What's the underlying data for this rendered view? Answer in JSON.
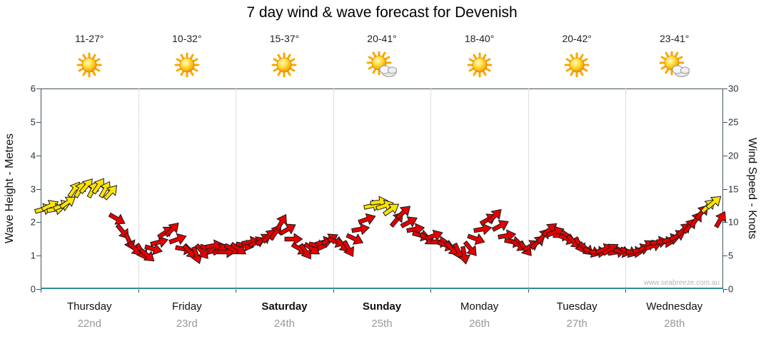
{
  "title": "7 day wind & wave forecast for Devenish",
  "watermark": "www.seabreeze.com.au",
  "left_axis": {
    "label": "Wave Height - Metres",
    "ticks": [
      0,
      1,
      2,
      3,
      4,
      5,
      6
    ]
  },
  "right_axis": {
    "label": "Wind Speed - Knots",
    "ticks": [
      0,
      5,
      10,
      15,
      20,
      25,
      30
    ]
  },
  "days": [
    {
      "name": "Thursday",
      "date": "22nd",
      "temp": "11-27°",
      "icon": "sun",
      "bold": false
    },
    {
      "name": "Friday",
      "date": "23rd",
      "temp": "10-32°",
      "icon": "sun",
      "bold": false
    },
    {
      "name": "Saturday",
      "date": "24th",
      "temp": "15-37°",
      "icon": "sun",
      "bold": true
    },
    {
      "name": "Sunday",
      "date": "25th",
      "temp": "20-41°",
      "icon": "sun-cloud",
      "bold": true
    },
    {
      "name": "Monday",
      "date": "26th",
      "temp": "18-40°",
      "icon": "sun",
      "bold": false
    },
    {
      "name": "Tuesday",
      "date": "27th",
      "temp": "20-42°",
      "icon": "sun",
      "bold": false
    },
    {
      "name": "Wednesday",
      "date": "28th",
      "temp": "23-41°",
      "icon": "sun-cloud",
      "bold": false
    }
  ],
  "colors": {
    "strong_wind": "#ffe400",
    "light_wind": "#e60000",
    "arrow_outline": "#1a1a1a",
    "axis": "#44545c",
    "bottom_axis": "#2e8b9a",
    "grid": "#bdbdbd",
    "date_text": "#999999",
    "watermark": "#b5b5b5"
  },
  "chart_data": {
    "type": "wind-arrows",
    "title": "7 day wind & wave forecast for Devenish",
    "x_categories": [
      "Thursday 22nd",
      "Friday 23rd",
      "Saturday 24th",
      "Sunday 25th",
      "Monday 26th",
      "Tuesday 27th",
      "Wednesday 28th"
    ],
    "samples_per_day": 16,
    "y_left": {
      "label": "Wave Height - Metres",
      "range": [
        0,
        6
      ]
    },
    "y_right": {
      "label": "Wind Speed - Knots",
      "range": [
        0,
        30
      ]
    },
    "yellow_threshold_knots": 12,
    "legend": "arrows give wind speed (knots, right axis) and direction; yellow = stronger wind",
    "arrows_speed_dir": [
      [
        12,
        -15
      ],
      [
        12.5,
        -25
      ],
      [
        12,
        -10
      ],
      [
        12.5,
        -20
      ],
      [
        13,
        -35
      ],
      [
        15,
        -55
      ],
      [
        15,
        -60
      ],
      [
        15.5,
        -50
      ],
      [
        15,
        -62
      ],
      [
        15.5,
        -55
      ],
      [
        15,
        -60
      ],
      [
        14.5,
        -48
      ],
      [
        10.5,
        30
      ],
      [
        8.5,
        50
      ],
      [
        7,
        65
      ],
      [
        6,
        45
      ],
      [
        5.5,
        60
      ],
      [
        5,
        40
      ],
      [
        6,
        15
      ],
      [
        7,
        -15
      ],
      [
        8.5,
        -35
      ],
      [
        9,
        -45
      ],
      [
        7.5,
        -20
      ],
      [
        6,
        10
      ],
      [
        5.5,
        45
      ],
      [
        5,
        70
      ],
      [
        5.5,
        50
      ],
      [
        6,
        20
      ],
      [
        6.5,
        -10
      ],
      [
        6,
        -30
      ],
      [
        5.5,
        0
      ],
      [
        6,
        25
      ],
      [
        6,
        35
      ],
      [
        6.5,
        10
      ],
      [
        7,
        -10
      ],
      [
        7,
        -25
      ],
      [
        7.5,
        -35
      ],
      [
        8,
        -45
      ],
      [
        8.5,
        -55
      ],
      [
        10,
        -60
      ],
      [
        9,
        -30
      ],
      [
        7.5,
        0
      ],
      [
        6,
        30
      ],
      [
        5.5,
        55
      ],
      [
        6,
        35
      ],
      [
        6.5,
        10
      ],
      [
        7,
        -15
      ],
      [
        7.5,
        -30
      ],
      [
        7,
        20
      ],
      [
        6.5,
        45
      ],
      [
        6,
        60
      ],
      [
        7.5,
        25
      ],
      [
        9,
        -10
      ],
      [
        10.5,
        -20
      ],
      [
        12.5,
        -12
      ],
      [
        13,
        -8
      ],
      [
        12.5,
        -18
      ],
      [
        12,
        -35
      ],
      [
        10.5,
        -50
      ],
      [
        11.5,
        -42
      ],
      [
        10,
        -28
      ],
      [
        9,
        -10
      ],
      [
        8,
        15
      ],
      [
        7.5,
        35
      ],
      [
        8,
        -20
      ],
      [
        7,
        0
      ],
      [
        6.5,
        20
      ],
      [
        6,
        45
      ],
      [
        5.5,
        65
      ],
      [
        5,
        80
      ],
      [
        6,
        50
      ],
      [
        7.5,
        20
      ],
      [
        9,
        -10
      ],
      [
        10.5,
        -30
      ],
      [
        11,
        -45
      ],
      [
        9.5,
        -28
      ],
      [
        8,
        -10
      ],
      [
        7,
        10
      ],
      [
        6.5,
        30
      ],
      [
        6,
        50
      ],
      [
        6.5,
        -30
      ],
      [
        7,
        -42
      ],
      [
        8,
        -50
      ],
      [
        9,
        -40
      ],
      [
        8.5,
        -20
      ],
      [
        8,
        0
      ],
      [
        7.5,
        22
      ],
      [
        7,
        42
      ],
      [
        6.5,
        60
      ],
      [
        6,
        42
      ],
      [
        5.5,
        20
      ],
      [
        5.5,
        0
      ],
      [
        6,
        -20
      ],
      [
        6,
        -32
      ],
      [
        5.5,
        -10
      ],
      [
        5.5,
        12
      ],
      [
        5.5,
        20
      ],
      [
        5.5,
        0
      ],
      [
        6,
        -20
      ],
      [
        6.5,
        -32
      ],
      [
        6.5,
        -20
      ],
      [
        7,
        -10
      ],
      [
        7,
        2
      ],
      [
        7.5,
        -15
      ],
      [
        8,
        -30
      ],
      [
        9,
        -42
      ],
      [
        9.5,
        -50
      ],
      [
        10.5,
        -55
      ],
      [
        11.5,
        -50
      ],
      [
        12.5,
        -45
      ],
      [
        13,
        -40
      ],
      [
        10.5,
        -60
      ]
    ]
  }
}
